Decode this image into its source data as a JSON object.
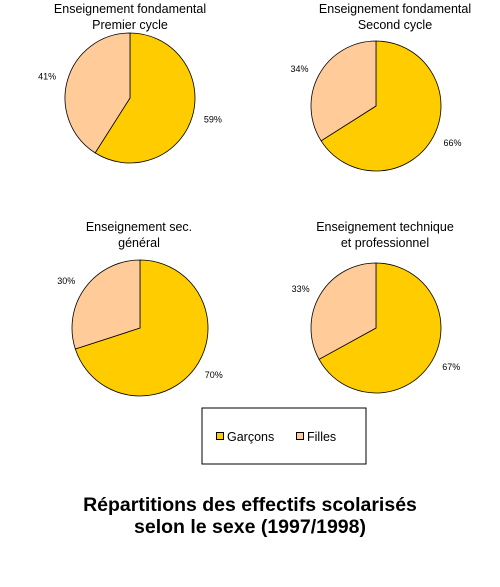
{
  "figure_title": {
    "line1": "Répartitions des effectifs scolarisés",
    "line2": "selon le sexe (1997/1998)"
  },
  "legend": {
    "items": [
      {
        "label": "Garçons",
        "color": "#ffcc00"
      },
      {
        "label": "Filles",
        "color": "#ffcc99"
      }
    ]
  },
  "chart_data": [
    {
      "type": "pie",
      "title": [
        "Enseignement fondamental",
        "Premier cycle"
      ],
      "slices": [
        {
          "category": "Garçons",
          "value": 59,
          "label": "59%",
          "color": "#ffcc00"
        },
        {
          "category": "Filles",
          "value": 41,
          "label": "41%",
          "color": "#ffcc99"
        }
      ]
    },
    {
      "type": "pie",
      "title": [
        "Enseignement fondamental",
        "Second cycle"
      ],
      "slices": [
        {
          "category": "Garçons",
          "value": 66,
          "label": "66%",
          "color": "#ffcc00"
        },
        {
          "category": "Filles",
          "value": 34,
          "label": "34%",
          "color": "#ffcc99"
        }
      ]
    },
    {
      "type": "pie",
      "title": [
        "Enseignement sec.",
        "général"
      ],
      "slices": [
        {
          "category": "Garçons",
          "value": 70,
          "label": "70%",
          "color": "#ffcc00"
        },
        {
          "category": "Filles",
          "value": 30,
          "label": "30%",
          "color": "#ffcc99"
        }
      ]
    },
    {
      "type": "pie",
      "title": [
        "Enseignement technique",
        "et professionnel"
      ],
      "slices": [
        {
          "category": "Garçons",
          "value": 67,
          "label": "67%",
          "color": "#ffcc00"
        },
        {
          "category": "Filles",
          "value": 33,
          "label": "33%",
          "color": "#ffcc99"
        }
      ]
    }
  ]
}
